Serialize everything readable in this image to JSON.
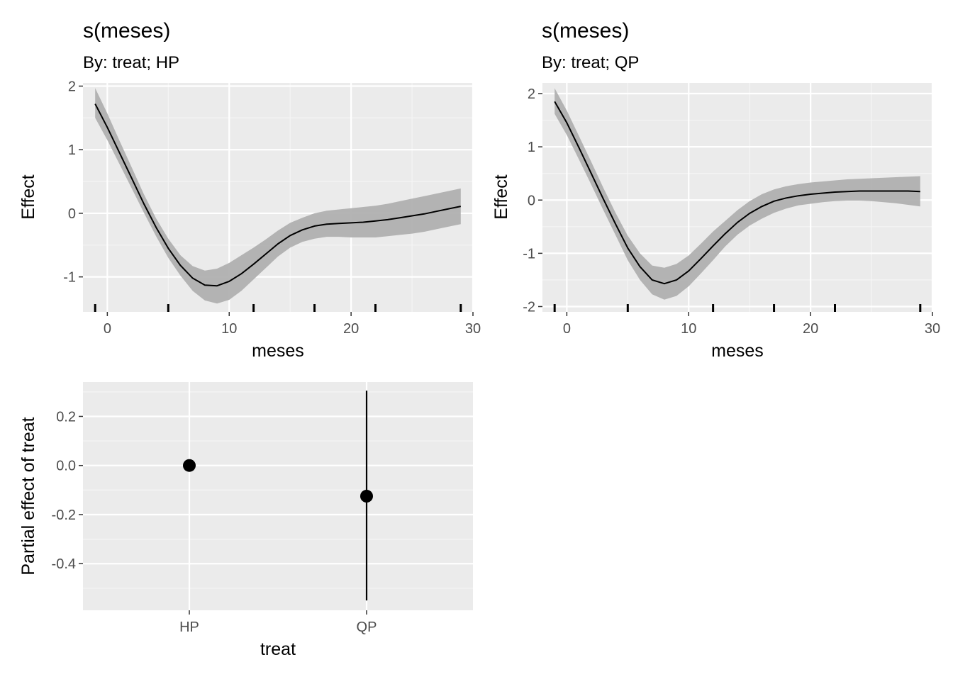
{
  "chart_data": [
    {
      "type": "line",
      "title": "s(meses)",
      "subtitle": "By: treat; HP",
      "xlabel": "meses",
      "ylabel": "Effect",
      "xlim": [
        -2,
        30
      ],
      "ylim": [
        -1.55,
        2.05
      ],
      "x_ticks": [
        0,
        10,
        20,
        30
      ],
      "x_tick_labels": [
        "0",
        "10",
        "20",
        "30"
      ],
      "y_ticks": [
        2,
        1,
        0,
        -1
      ],
      "y_tick_labels": [
        "2",
        "1",
        "0",
        "-1"
      ],
      "grid": true,
      "series": [
        {
          "x": [
            -1,
            0,
            1,
            2,
            3,
            4,
            5,
            6,
            7,
            8,
            9,
            10,
            11,
            12,
            13,
            14,
            15,
            16,
            17,
            18,
            19,
            20,
            21,
            22,
            23,
            24,
            25,
            26,
            27,
            28,
            29
          ],
          "y": [
            1.72,
            1.35,
            0.95,
            0.55,
            0.15,
            -0.22,
            -0.55,
            -0.82,
            -1.02,
            -1.13,
            -1.14,
            -1.07,
            -0.95,
            -0.8,
            -0.64,
            -0.48,
            -0.35,
            -0.26,
            -0.2,
            -0.17,
            -0.16,
            -0.15,
            -0.14,
            -0.12,
            -0.1,
            -0.07,
            -0.04,
            -0.01,
            0.03,
            0.07,
            0.11
          ],
          "lower": [
            1.5,
            1.15,
            0.77,
            0.39,
            0.01,
            -0.36,
            -0.7,
            -0.98,
            -1.22,
            -1.37,
            -1.42,
            -1.36,
            -1.22,
            -1.04,
            -0.86,
            -0.68,
            -0.54,
            -0.45,
            -0.4,
            -0.37,
            -0.37,
            -0.38,
            -0.38,
            -0.38,
            -0.36,
            -0.34,
            -0.32,
            -0.29,
            -0.25,
            -0.21,
            -0.17
          ],
          "upper": [
            1.97,
            1.57,
            1.14,
            0.72,
            0.3,
            -0.08,
            -0.4,
            -0.66,
            -0.83,
            -0.9,
            -0.87,
            -0.78,
            -0.66,
            -0.54,
            -0.41,
            -0.27,
            -0.15,
            -0.07,
            0.0,
            0.04,
            0.06,
            0.08,
            0.1,
            0.12,
            0.15,
            0.19,
            0.23,
            0.27,
            0.31,
            0.35,
            0.39
          ]
        }
      ],
      "rug_x": [
        -1,
        5,
        12,
        17,
        22,
        29
      ]
    },
    {
      "type": "line",
      "title": "s(meses)",
      "subtitle": "By: treat; QP",
      "xlabel": "meses",
      "ylabel": "Effect",
      "xlim": [
        -2,
        30
      ],
      "ylim": [
        -2.1,
        2.2
      ],
      "x_ticks": [
        0,
        10,
        20,
        30
      ],
      "x_tick_labels": [
        "0",
        "10",
        "20",
        "30"
      ],
      "y_ticks": [
        2,
        1,
        0,
        -1,
        -2
      ],
      "y_tick_labels": [
        "2",
        "1",
        "0",
        "-1",
        "-2"
      ],
      "grid": true,
      "series": [
        {
          "x": [
            -1,
            0,
            1,
            2,
            3,
            4,
            5,
            6,
            7,
            8,
            9,
            10,
            11,
            12,
            13,
            14,
            15,
            16,
            17,
            18,
            19,
            20,
            21,
            22,
            23,
            24,
            25,
            26,
            27,
            28,
            29
          ],
          "y": [
            1.85,
            1.45,
            0.98,
            0.5,
            0.02,
            -0.45,
            -0.9,
            -1.25,
            -1.5,
            -1.57,
            -1.5,
            -1.33,
            -1.1,
            -0.86,
            -0.63,
            -0.42,
            -0.25,
            -0.12,
            -0.02,
            0.04,
            0.08,
            0.11,
            0.13,
            0.15,
            0.16,
            0.17,
            0.17,
            0.17,
            0.17,
            0.17,
            0.16
          ],
          "lower": [
            1.62,
            1.22,
            0.76,
            0.29,
            -0.19,
            -0.66,
            -1.13,
            -1.5,
            -1.77,
            -1.87,
            -1.8,
            -1.62,
            -1.38,
            -1.13,
            -0.87,
            -0.65,
            -0.48,
            -0.35,
            -0.24,
            -0.16,
            -0.1,
            -0.07,
            -0.04,
            -0.02,
            -0.01,
            -0.01,
            -0.02,
            -0.04,
            -0.06,
            -0.09,
            -0.12
          ],
          "upper": [
            2.1,
            1.68,
            1.2,
            0.72,
            0.23,
            -0.24,
            -0.67,
            -1.0,
            -1.23,
            -1.27,
            -1.2,
            -1.04,
            -0.82,
            -0.59,
            -0.39,
            -0.19,
            -0.02,
            0.11,
            0.2,
            0.26,
            0.3,
            0.33,
            0.35,
            0.37,
            0.39,
            0.4,
            0.41,
            0.42,
            0.43,
            0.44,
            0.45
          ]
        }
      ],
      "rug_x": [
        -1,
        5,
        12,
        17,
        22,
        29
      ]
    },
    {
      "type": "scatter",
      "xlabel": "treat",
      "ylabel": "Partial effect of treat",
      "categories": [
        "HP",
        "QP"
      ],
      "values": [
        0.0,
        -0.125
      ],
      "error_lower": [
        0.0,
        -0.55
      ],
      "error_upper": [
        0.0,
        0.305
      ],
      "ylim": [
        -0.59,
        0.34
      ],
      "y_ticks": [
        0.2,
        0.0,
        -0.2,
        -0.4
      ],
      "y_tick_labels": [
        "0.2",
        "0.0",
        "-0.2",
        "-0.4"
      ],
      "grid": true
    }
  ]
}
